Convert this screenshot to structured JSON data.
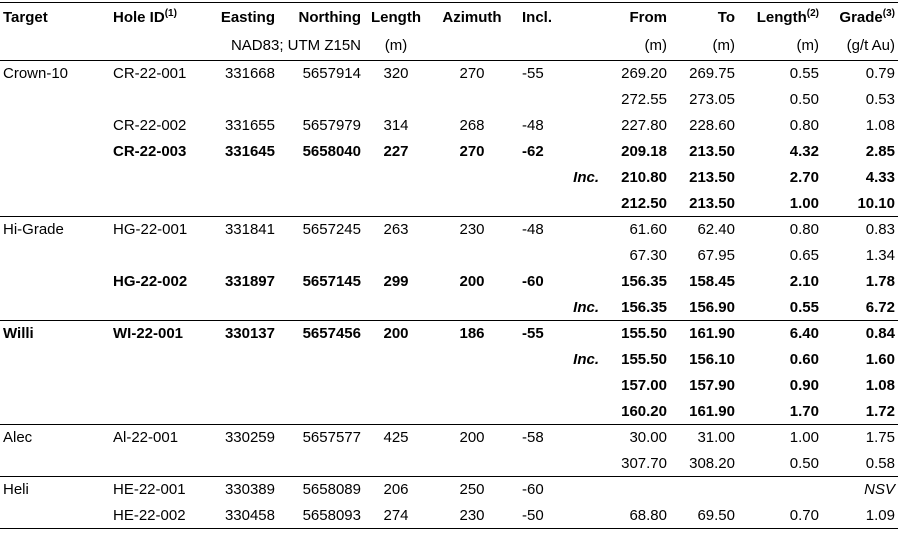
{
  "header": {
    "columns": [
      {
        "label": "Target"
      },
      {
        "label": "Hole ID",
        "note": "(1)"
      },
      {
        "label": "Easting"
      },
      {
        "label": "Northing"
      },
      {
        "label": "Length"
      },
      {
        "label": "Azimuth"
      },
      {
        "label": "Incl."
      },
      {
        "label": "From"
      },
      {
        "label": "To"
      },
      {
        "label": "Length",
        "note": "(2)"
      },
      {
        "label": "Grade",
        "note": "(3)"
      }
    ],
    "units": {
      "coords": "NAD83; UTM Z15N",
      "length": "(m)",
      "from": "(m)",
      "to": "(m)",
      "interval": "(m)",
      "grade": "(g/t Au)"
    }
  },
  "groups": [
    {
      "target": "Crown-10",
      "rows": [
        {
          "hole_id": "CR-22-001",
          "easting": 331668,
          "northing": 5657914,
          "length": 320,
          "azimuth": 270,
          "incl": -55,
          "from": "269.20",
          "to": "269.75",
          "interval": "0.55",
          "grade": "0.79"
        },
        {
          "from": "272.55",
          "to": "273.05",
          "interval": "0.50",
          "grade": "0.53"
        },
        {
          "hole_id": "CR-22-002",
          "easting": 331655,
          "northing": 5657979,
          "length": 314,
          "azimuth": 268,
          "incl": -48,
          "from": "227.80",
          "to": "228.60",
          "interval": "0.80",
          "grade": "1.08"
        },
        {
          "hole_id": "CR-22-003",
          "easting": 331645,
          "northing": 5658040,
          "length": 227,
          "azimuth": 270,
          "incl": -62,
          "from": "209.18",
          "to": "213.50",
          "interval": "4.32",
          "grade": "2.85",
          "bold": true
        },
        {
          "inc": "Inc.",
          "from": "210.80",
          "to": "213.50",
          "interval": "2.70",
          "grade": "4.33",
          "bold": true
        },
        {
          "from": "212.50",
          "to": "213.50",
          "interval": "1.00",
          "grade": "10.10",
          "bold": true
        }
      ]
    },
    {
      "target": "Hi-Grade",
      "rows": [
        {
          "hole_id": "HG-22-001",
          "easting": 331841,
          "northing": 5657245,
          "length": 263,
          "azimuth": 230,
          "incl": -48,
          "from": "61.60",
          "to": "62.40",
          "interval": "0.80",
          "grade": "0.83"
        },
        {
          "from": "67.30",
          "to": "67.95",
          "interval": "0.65",
          "grade": "1.34"
        },
        {
          "hole_id": "HG-22-002",
          "easting": 331897,
          "northing": 5657145,
          "length": 299,
          "azimuth": 200,
          "incl": -60,
          "from": "156.35",
          "to": "158.45",
          "interval": "2.10",
          "grade": "1.78",
          "bold": true
        },
        {
          "inc": "Inc.",
          "from": "156.35",
          "to": "156.90",
          "interval": "0.55",
          "grade": "6.72",
          "bold": true
        }
      ]
    },
    {
      "target": "Willi",
      "rows": [
        {
          "hole_id": "WI-22-001",
          "easting": 330137,
          "northing": 5657456,
          "length": 200,
          "azimuth": 186,
          "incl": -55,
          "from": "155.50",
          "to": "161.90",
          "interval": "6.40",
          "grade": "0.84",
          "bold": true
        },
        {
          "inc": "Inc.",
          "from": "155.50",
          "to": "156.10",
          "interval": "0.60",
          "grade": "1.60",
          "bold": true
        },
        {
          "from": "157.00",
          "to": "157.90",
          "interval": "0.90",
          "grade": "1.08",
          "bold": true
        },
        {
          "from": "160.20",
          "to": "161.90",
          "interval": "1.70",
          "grade": "1.72",
          "bold": true
        }
      ]
    },
    {
      "target": "Alec",
      "rows": [
        {
          "hole_id": "Al-22-001",
          "easting": 330259,
          "northing": 5657577,
          "length": 425,
          "azimuth": 200,
          "incl": -58,
          "from": "30.00",
          "to": "31.00",
          "interval": "1.00",
          "grade": "1.75"
        },
        {
          "from": "307.70",
          "to": "308.20",
          "interval": "0.50",
          "grade": "0.58"
        }
      ]
    },
    {
      "target": "Heli",
      "rows": [
        {
          "hole_id": "HE-22-001",
          "easting": 330389,
          "northing": 5658089,
          "length": 206,
          "azimuth": 250,
          "incl": -60,
          "grade": "NSV",
          "italic": true
        },
        {
          "hole_id": "HE-22-002",
          "easting": 330458,
          "northing": 5658093,
          "length": 274,
          "azimuth": 230,
          "incl": -50,
          "from": "68.80",
          "to": "69.50",
          "interval": "0.70",
          "grade": "1.09"
        }
      ]
    }
  ]
}
